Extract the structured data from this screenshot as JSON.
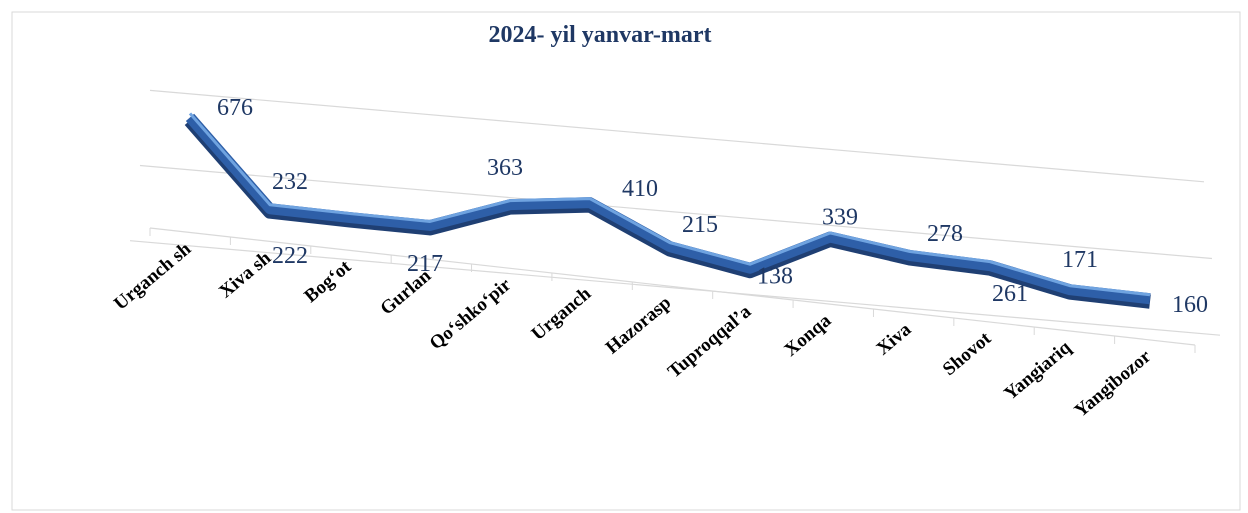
{
  "chart_data": {
    "type": "line",
    "title": "2024- yil yanvar-mart",
    "categories": [
      "Urganch sh",
      "Xiva sh",
      "Bog‘ot",
      "Gurlan",
      "Qo‘shko‘pir",
      "Urganch",
      "Hazorasp",
      "Tuproqqal’a",
      "Xonqa",
      "Xiva",
      "Shovot",
      "Yangiariq",
      "Yangibozor"
    ],
    "values": [
      676,
      232,
      222,
      217,
      363,
      410,
      215,
      138,
      339,
      278,
      261,
      171,
      160
    ],
    "color": "#2e5fa8",
    "ylim": [
      0,
      800
    ],
    "yticks": [
      0,
      400,
      800
    ],
    "grid": true
  }
}
